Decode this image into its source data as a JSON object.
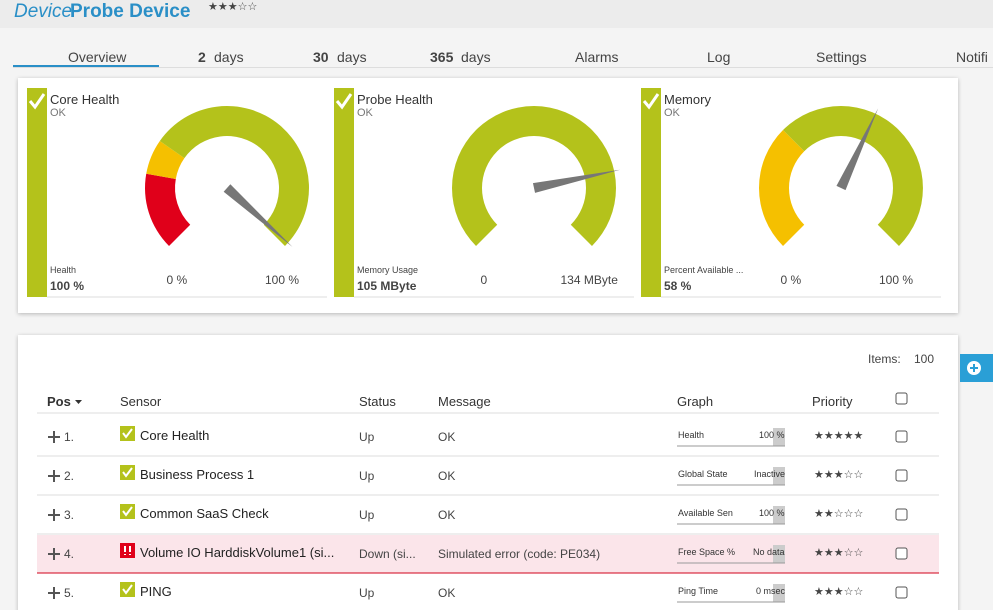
{
  "header": {
    "title_prefix": "Device",
    "title": "Probe Device",
    "priority": 3
  },
  "tabs": [
    {
      "label": "Overview"
    },
    {
      "bold": "2",
      "label": "days"
    },
    {
      "bold": "30",
      "label": "days"
    },
    {
      "bold": "365",
      "label": "days"
    },
    {
      "label": "Alarms"
    },
    {
      "label": "Log"
    },
    {
      "label": "Settings"
    },
    {
      "label": "Notifi"
    }
  ],
  "gauges": [
    {
      "title": "Core Health",
      "status": "OK",
      "channel": "Health",
      "value": "100 %",
      "min": "0 %",
      "max": "100 %"
    },
    {
      "title": "Probe Health",
      "status": "OK",
      "channel": "Memory Usage",
      "value": "105 MByte",
      "min": "0",
      "max": "134 MByte"
    },
    {
      "title": "Memory",
      "status": "OK",
      "channel": "Percent Available ...",
      "value": "58 %",
      "min": "0 %",
      "max": "100 %"
    }
  ],
  "table": {
    "items_label": "Items:",
    "items_value": "100",
    "columns": [
      "Pos",
      "Sensor",
      "Status",
      "Message",
      "Graph",
      "Priority"
    ],
    "rows": [
      {
        "pos": "1.",
        "sensor": "Core Health",
        "status": "Up",
        "message": "OK",
        "graph_label": "Health",
        "graph_value": "100 %",
        "priority": 5,
        "color": "#b4c21b"
      },
      {
        "pos": "2.",
        "sensor": "Business Process 1",
        "status": "Up",
        "message": "OK",
        "graph_label": "Global State",
        "graph_value": "Inactive",
        "priority": 3,
        "color": "#b4c21b"
      },
      {
        "pos": "3.",
        "sensor": "Common SaaS Check",
        "status": "Up",
        "message": "OK",
        "graph_label": "Available Sen",
        "graph_value": "100 %",
        "priority": 2,
        "color": "#b4c21b"
      },
      {
        "pos": "4.",
        "sensor": "Volume IO HarddiskVolume1 (si...",
        "status": "Down (si...",
        "message": "Simulated error (code: PE034)",
        "graph_label": "Free Space %",
        "graph_value": "No data",
        "priority": 3,
        "color": "#e0001a"
      },
      {
        "pos": "5.",
        "sensor": "PING",
        "status": "Up",
        "message": "OK",
        "graph_label": "Ping Time",
        "graph_value": "0 msec",
        "priority": 3,
        "color": "#b4c21b"
      }
    ]
  }
}
